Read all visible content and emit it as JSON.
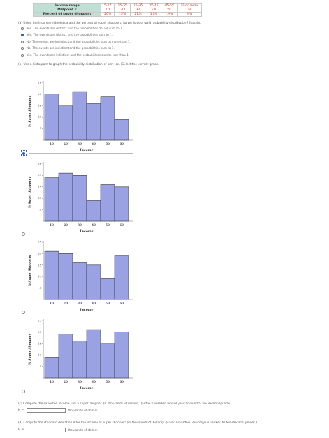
{
  "table": {
    "row_labels": [
      "Income range",
      "Midpoint x",
      "Percent of super shoppers"
    ],
    "ranges": [
      "5-15",
      "15-25",
      "25-35",
      "35-45",
      "45-55",
      "55 or more"
    ],
    "midpoints": [
      "10",
      "20",
      "30",
      "40",
      "50",
      "60"
    ],
    "percents": [
      "20%",
      "15%",
      "21%",
      "16%",
      "19%",
      "9%"
    ]
  },
  "part_a": {
    "question": "(a) Using the income midpoints x and the percent of super shoppers, do we have a valid probability distribution? Explain.",
    "options": [
      "Yes. The events are distinct and the probabilities do not sum to 1.",
      "Yes. The events are distinct and the probabilities sum to 1.",
      "No. The events are indistinct and the probabilities sum to more than 1.",
      "No. The events are indistinct and the probabilities sum to 1.",
      "Yes. The events are indistinct and the probabilities sum to less than 1."
    ],
    "selected_index": 1
  },
  "part_b": {
    "question": "(b) Use a histogram to graph the probability distribution of part (a). (Select the correct graph.)",
    "selected_index": 0
  },
  "chart_data": [
    {
      "type": "bar",
      "categories": [
        "10",
        "20",
        "30",
        "40",
        "50",
        "60"
      ],
      "values": [
        20,
        15,
        21,
        16,
        19,
        9
      ],
      "xlabel": "Income",
      "ylabel": "% Super Shoppers",
      "ylim": [
        0,
        25
      ],
      "yticks": [
        5,
        10,
        15,
        20,
        25
      ],
      "xticks": [
        "10",
        "20",
        "30",
        "40",
        "50",
        "60"
      ],
      "bar_color": "#9ba2e3"
    },
    {
      "type": "bar",
      "categories": [
        "10",
        "20",
        "30",
        "40",
        "50",
        "60"
      ],
      "values": [
        19,
        21,
        20,
        9,
        16,
        15
      ],
      "xlabel": "Income",
      "ylabel": "% Super Shoppers",
      "ylim": [
        0,
        25
      ],
      "yticks": [
        5,
        10,
        15,
        20,
        25
      ],
      "xticks": [
        "10",
        "20",
        "30",
        "40",
        "50",
        "60"
      ],
      "bar_color": "#9ba2e3"
    },
    {
      "type": "bar",
      "categories": [
        "10",
        "20",
        "30",
        "40",
        "50",
        "60"
      ],
      "values": [
        21,
        20,
        16,
        15,
        9,
        19
      ],
      "xlabel": "Income",
      "ylabel": "% Super Shoppers",
      "ylim": [
        0,
        25
      ],
      "yticks": [
        5,
        10,
        15,
        20,
        25
      ],
      "xticks": [
        "10",
        "20",
        "30",
        "40",
        "50",
        "60"
      ],
      "bar_color": "#9ba2e3"
    },
    {
      "type": "bar",
      "categories": [
        "10",
        "20",
        "30",
        "40",
        "50",
        "60"
      ],
      "values": [
        9,
        19,
        16,
        21,
        15,
        20
      ],
      "xlabel": "Income",
      "ylabel": "% Super Shoppers",
      "ylim": [
        0,
        25
      ],
      "yticks": [
        5,
        10,
        15,
        20,
        25
      ],
      "xticks": [
        "10",
        "20",
        "30",
        "40",
        "50",
        "60"
      ],
      "bar_color": "#9ba2e3"
    }
  ],
  "part_c": {
    "question": "(c) Compute the expected income μ of a super shopper (in thousands of dollars). (Enter a number. Round your answer to two decimal places.)",
    "symbol": "μ =",
    "value": "",
    "unit": "thousands of dollars"
  },
  "part_d": {
    "question": "(d) Compute the standard deviation σ for the income of super shoppers (in thousands of dollars). (Enter a number. Round your answer to two decimal places.)",
    "symbol": "σ =",
    "value": "",
    "unit": "thousands of dollars"
  }
}
